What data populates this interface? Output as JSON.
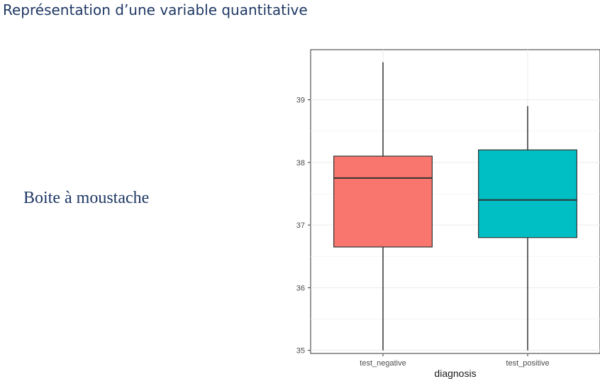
{
  "slide": {
    "title": "Représentation d’une variable quantitative",
    "label": "Boite à moustache"
  },
  "chart_data": {
    "type": "boxplot",
    "xlabel": "diagnosis",
    "ylabel": "",
    "ylim": [
      34.95,
      39.8
    ],
    "yticks": [
      35,
      36,
      37,
      38,
      39
    ],
    "grid": true,
    "legend": "none",
    "categories": [
      "test_negative",
      "test_positive"
    ],
    "boxes": [
      {
        "category": "test_negative",
        "min": 35.0,
        "q1": 36.65,
        "median": 37.75,
        "q3": 38.1,
        "max": 39.6,
        "color": "#F8766D"
      },
      {
        "category": "test_positive",
        "min": 35.0,
        "q1": 36.8,
        "median": 37.4,
        "q3": 38.2,
        "max": 38.9,
        "color": "#00BFC4"
      }
    ]
  }
}
